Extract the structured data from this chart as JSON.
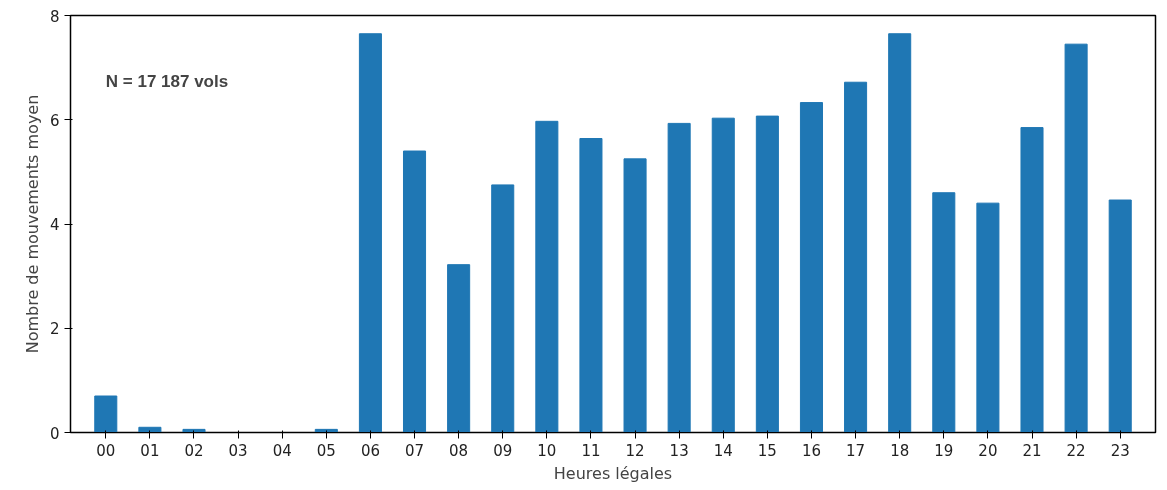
{
  "chart_data": {
    "type": "bar",
    "xlabel": "Heures légales",
    "ylabel": "Nombre de mouvements moyen",
    "categories": [
      "00",
      "01",
      "02",
      "03",
      "04",
      "05",
      "06",
      "07",
      "08",
      "09",
      "10",
      "11",
      "12",
      "13",
      "14",
      "15",
      "16",
      "17",
      "18",
      "19",
      "20",
      "21",
      "22",
      "23"
    ],
    "values": [
      0.7,
      0.1,
      0.06,
      0,
      0,
      0.06,
      7.65,
      5.4,
      3.22,
      4.75,
      5.97,
      5.64,
      5.25,
      5.93,
      6.03,
      6.07,
      6.33,
      6.72,
      7.65,
      4.6,
      4.4,
      5.85,
      7.45,
      4.46
    ],
    "color": "#1f77b4",
    "ylim": [
      0,
      8
    ],
    "yticks": [
      0,
      2,
      4,
      6,
      8
    ],
    "grid": false,
    "annotations": [
      "N = 17 187 vols"
    ]
  }
}
